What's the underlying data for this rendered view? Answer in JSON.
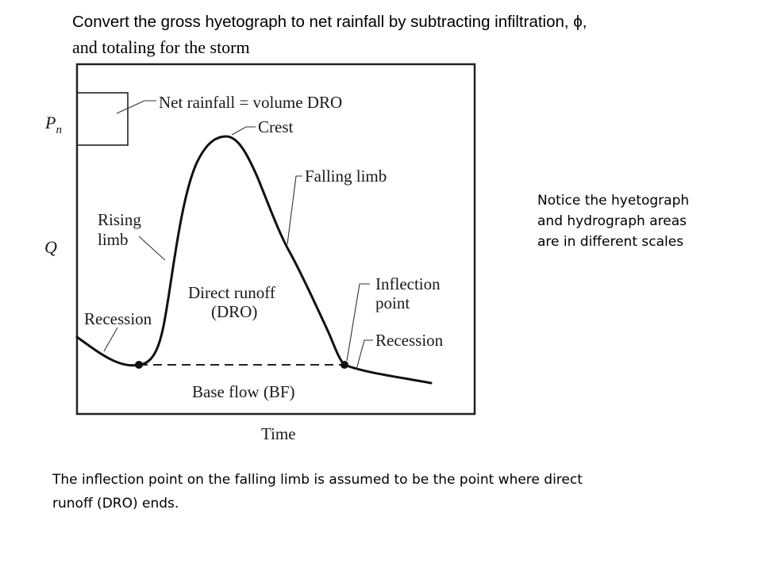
{
  "title": {
    "line1": "Convert the gross hyetograph to net rainfall by subtracting infiltration, ϕ,",
    "line2": "and totaling for the storm"
  },
  "side_note": {
    "lines": [
      "Notice the hyetograph",
      "and hydrograph areas",
      "are in different scales"
    ]
  },
  "caption": {
    "lines": [
      "The inflection point on the falling limb is assumed to be the point where direct",
      "runoff (DRO) ends."
    ]
  },
  "diagram": {
    "y_label_top": "P",
    "y_label_top_sub": "n",
    "y_label_bottom": "Q",
    "x_label": "Time",
    "labels": {
      "net_rainfall": "Net rainfall = volume DRO",
      "crest": "Crest",
      "falling_limb": "Falling limb",
      "rising_limb_1": "Rising",
      "rising_limb_2": "limb",
      "direct_runoff_1": "Direct runoff",
      "direct_runoff_2": "(DRO)",
      "recession_left": "Recession",
      "inflection_1": "Inflection",
      "inflection_2": "point",
      "recession_right": "Recession",
      "base_flow": "Base flow (BF)"
    }
  }
}
